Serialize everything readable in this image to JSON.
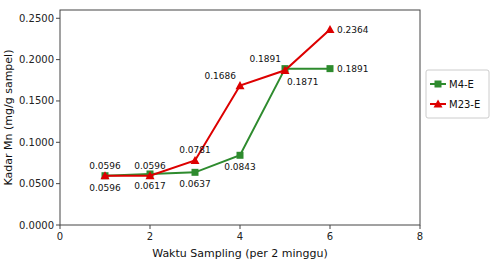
{
  "chart_data": {
    "type": "line",
    "x_label": "Waktu Sampling (per 2 minggu)",
    "y_label": "Kadar Mn (mg/g sampel)",
    "x": [
      1,
      2,
      3,
      4,
      5,
      6
    ],
    "series": [
      {
        "name": "M4-E",
        "color": "#2E8B2E",
        "marker": "square",
        "values": [
          0.0596,
          0.0617,
          0.0637,
          0.0843,
          0.1891,
          0.1891
        ]
      },
      {
        "name": "M23-E",
        "color": "#DD0000",
        "marker": "triangle",
        "values": [
          0.0596,
          0.0596,
          0.0781,
          0.1686,
          0.1871,
          0.2364
        ]
      }
    ],
    "xlim": [
      0,
      8
    ],
    "ylim": [
      0.0,
      0.26
    ],
    "xticks": [
      0,
      2,
      4,
      6,
      8
    ],
    "yticks": [
      {
        "value": 0.0,
        "label": "0.0000"
      },
      {
        "value": 0.05,
        "label": "0.0500"
      },
      {
        "value": 0.1,
        "label": "0.1000"
      },
      {
        "value": 0.15,
        "label": "0.1500"
      },
      {
        "value": 0.2,
        "label": "0.2000"
      },
      {
        "value": 0.25,
        "label": "0.2500"
      }
    ],
    "data_labels": true,
    "grid": false,
    "legend": "right"
  }
}
